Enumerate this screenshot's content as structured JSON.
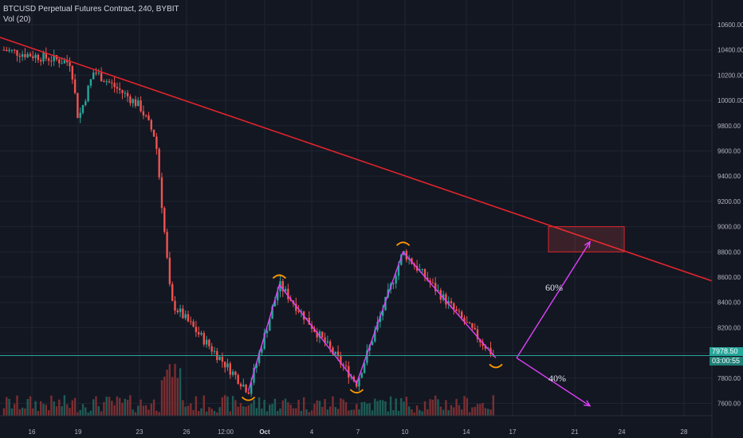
{
  "legend": {
    "symbol": "BTCUSD Perpetual Futures Contract, 240, BYBIT",
    "volume": "Vol (20)"
  },
  "price_axis": {
    "labels": [
      "10600.00",
      "10400.00",
      "10200.00",
      "10000.00",
      "9800.00",
      "9600.00",
      "9400.00",
      "9200.00",
      "9000.00",
      "8800.00",
      "8600.00",
      "8400.00",
      "8200.00",
      "8000.00",
      "7800.00",
      "7600.00"
    ],
    "current_price": "7978.50",
    "countdown": "03:00:55"
  },
  "time_axis": {
    "labels": [
      "16",
      "19",
      "23",
      "26",
      "12:00",
      "Oct",
      "4",
      "7",
      "10",
      "14",
      "17",
      "21",
      "24",
      "28"
    ]
  },
  "annotations": {
    "up_probability": "60%",
    "down_probability": "40%"
  },
  "colors": {
    "background": "#131722",
    "up": "#26a69a",
    "down": "#ef5350",
    "trendline": "#e0242b",
    "projection": "#e040fb",
    "pivot_marker": "#ff9800",
    "price_line": "#26a69a"
  },
  "chart_data": {
    "type": "candlestick",
    "title": "BTCUSD Perpetual Futures Contract, 240, BYBIT",
    "ylim": [
      7450,
      10700
    ],
    "key_points": [
      {
        "x": "Sep 15",
        "y": 10400
      },
      {
        "x": "Sep 24",
        "y": 9700
      },
      {
        "x": "Sep 25",
        "y": 8400
      },
      {
        "x": "Sep 30",
        "y": 7700
      },
      {
        "x": "Oct 2",
        "y": 8540
      },
      {
        "x": "Oct 7",
        "y": 7760
      },
      {
        "x": "Oct 10",
        "y": 8800
      },
      {
        "x": "Oct 16",
        "y": 7960
      }
    ],
    "trendline": {
      "from": {
        "x": "Sep 13",
        "y": 10500
      },
      "to": {
        "x": "Oct 31",
        "y": 8570
      }
    },
    "target_zone": {
      "x_from": "Oct 19",
      "x_to": "Oct 24",
      "y_from": 8800,
      "y_to": 9000
    },
    "projections": [
      {
        "label": "60%",
        "from": {
          "x": "Oct 17",
          "y": 7960
        },
        "to": {
          "x": "Oct 21",
          "y": 8880
        }
      },
      {
        "label": "40%",
        "from": {
          "x": "Oct 17",
          "y": 7960
        },
        "to": {
          "x": "Oct 21",
          "y": 7580
        }
      }
    ],
    "current_price": 7978.5,
    "volume_indicator": "Vol (20)"
  }
}
